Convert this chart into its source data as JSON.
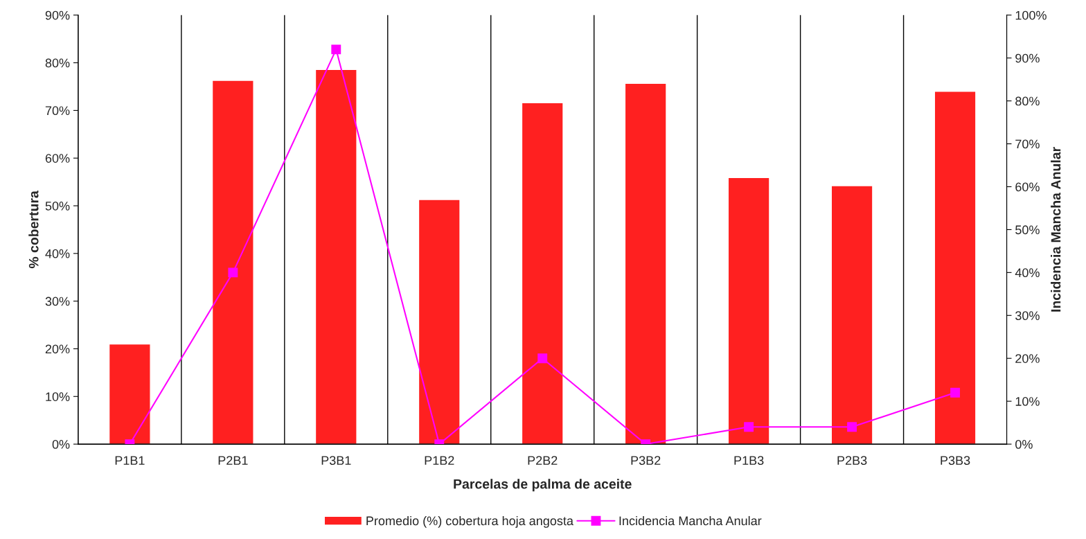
{
  "chart_data": {
    "type": "bar",
    "xlabel": "Parcelas de palma de aceite",
    "ylabel": "% cobertura",
    "y2label": "Incidencia Mancha Anular",
    "categories": [
      "P1B1",
      "P2B1",
      "P3B1",
      "P1B2",
      "P2B2",
      "P3B2",
      "P1B3",
      "P2B3",
      "P3B3"
    ],
    "series": [
      {
        "name": "Promedio (%) cobertura hoja angosta",
        "color": "#ff2020",
        "values": [
          21,
          76.3,
          78.6,
          51.3,
          71.6,
          75.7,
          55.9,
          54.2,
          74.0
        ]
      },
      {
        "name": "Incidencia Mancha Anular",
        "type": "line",
        "axis": "y2",
        "color": "#ff00ff",
        "marker": "square",
        "values": [
          0,
          40,
          92,
          0,
          20,
          0,
          4,
          4,
          12
        ]
      }
    ],
    "ylim": [
      0,
      90
    ],
    "yticks": [
      {
        "value": 0,
        "label": "0%"
      },
      {
        "value": 10,
        "label": "10%"
      },
      {
        "value": 20,
        "label": "20%"
      },
      {
        "value": 30,
        "label": "30%"
      },
      {
        "value": 40,
        "label": "40%"
      },
      {
        "value": 50,
        "label": "50%"
      },
      {
        "value": 60,
        "label": "60%"
      },
      {
        "value": 70,
        "label": "70%"
      },
      {
        "value": 80,
        "label": "80%"
      },
      {
        "value": 90,
        "label": "90%"
      }
    ],
    "y2lim": [
      0,
      100
    ],
    "y2ticks": [
      {
        "value": 0,
        "label": "0%"
      },
      {
        "value": 10,
        "label": "10%"
      },
      {
        "value": 20,
        "label": "20%"
      },
      {
        "value": 30,
        "label": "30%"
      },
      {
        "value": 40,
        "label": "40%"
      },
      {
        "value": 50,
        "label": "50%"
      },
      {
        "value": 60,
        "label": "60%"
      },
      {
        "value": 70,
        "label": "70%"
      },
      {
        "value": 80,
        "label": "80%"
      },
      {
        "value": 90,
        "label": "90%"
      },
      {
        "value": 100,
        "label": "100%"
      }
    ],
    "grid": "x",
    "legend": "bottom"
  }
}
